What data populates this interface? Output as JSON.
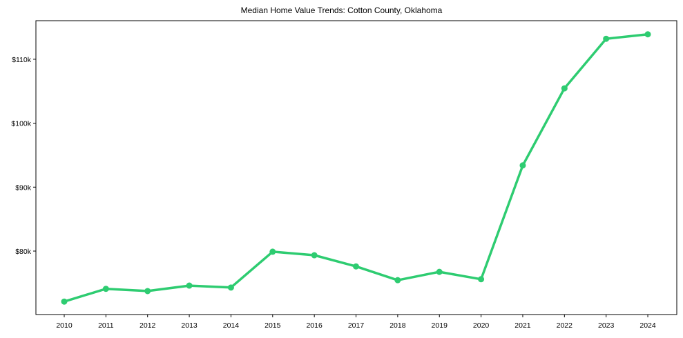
{
  "chart_data": {
    "type": "line",
    "title": "Median Home Value Trends: Cotton County, Oklahoma",
    "xlabel": "",
    "ylabel": "",
    "categories": [
      "2010",
      "2011",
      "2012",
      "2013",
      "2014",
      "2015",
      "2016",
      "2017",
      "2018",
      "2019",
      "2020",
      "2021",
      "2022",
      "2023",
      "2024"
    ],
    "series": [
      {
        "name": "Median Home Value",
        "color": "#2ecc71",
        "values": [
          72100,
          74100,
          73750,
          74600,
          74300,
          79900,
          79350,
          77600,
          75450,
          76750,
          75600,
          93400,
          105450,
          113200,
          113900
        ]
      }
    ],
    "y_ticks": [
      80000,
      90000,
      100000,
      110000
    ],
    "y_tick_labels": [
      "$80k",
      "$90k",
      "$100k",
      "$110k"
    ],
    "ylim": [
      70000,
      117000
    ],
    "grid": false,
    "legend": null
  }
}
